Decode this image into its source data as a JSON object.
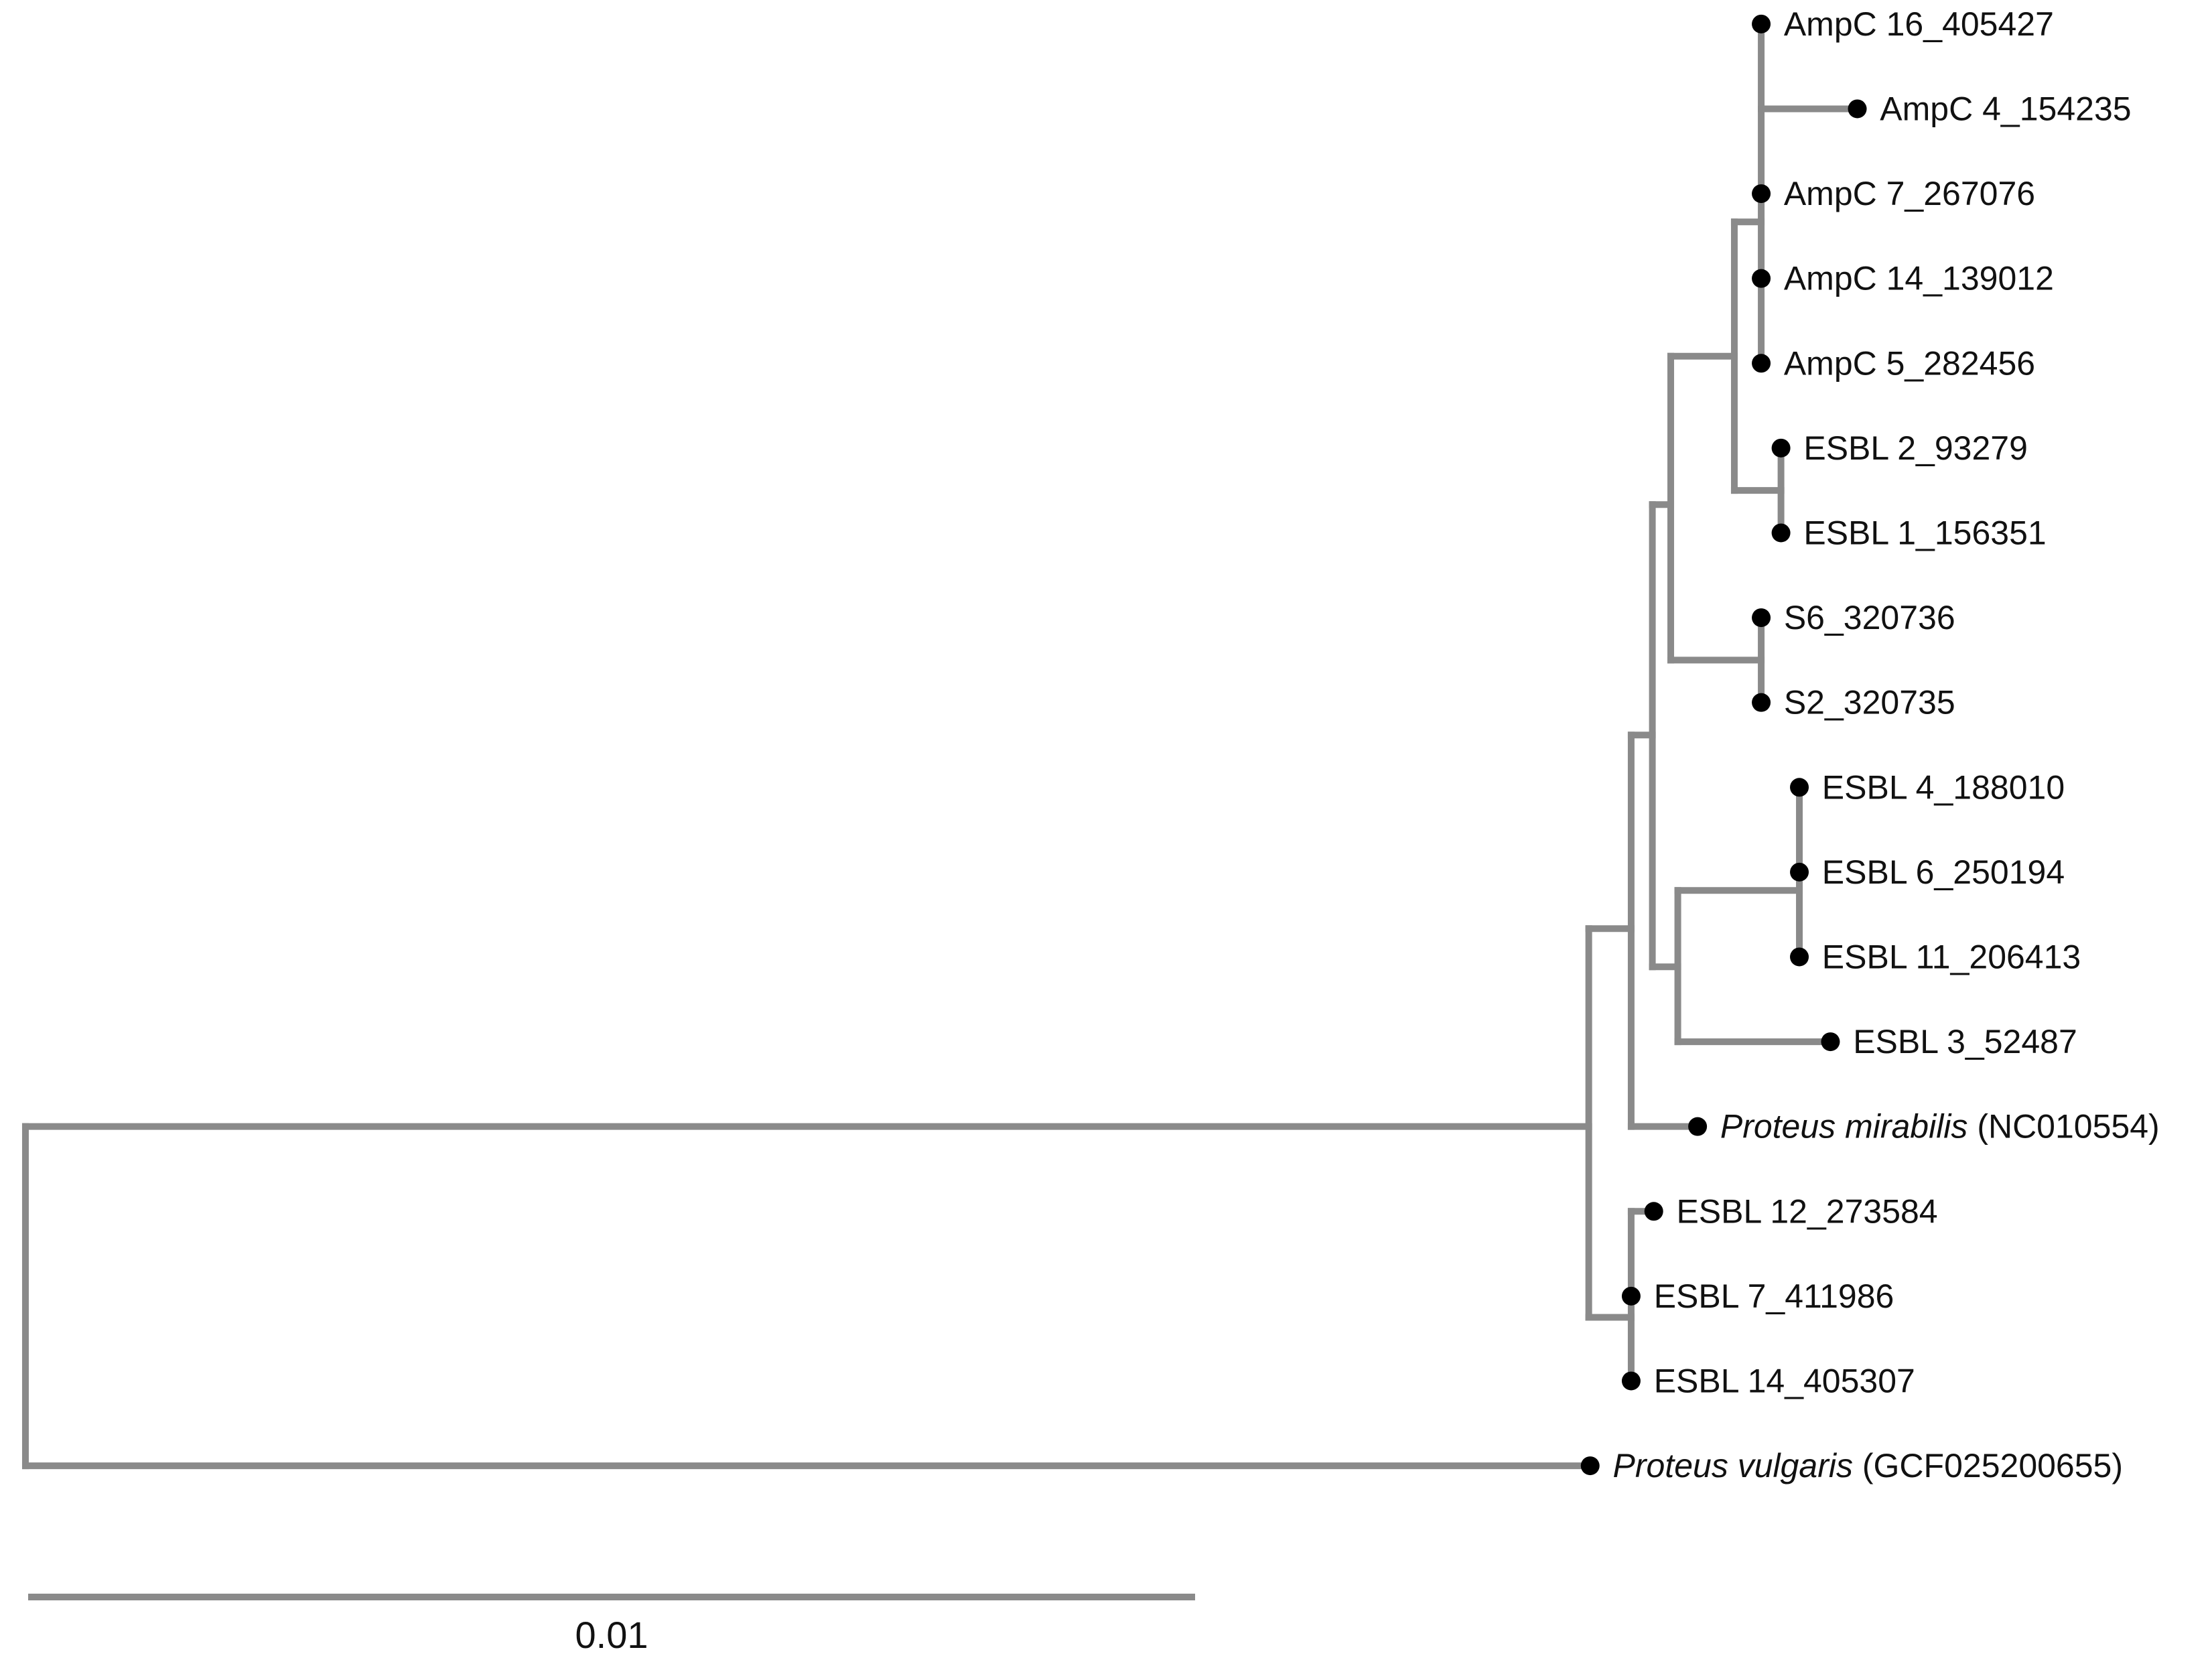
{
  "colors": {
    "branch": "#8a8a8a",
    "tip": "#000000",
    "text": "#111111"
  },
  "scale_bar": {
    "label": "0.01"
  },
  "taxa": [
    {
      "id": "ampc16",
      "name": "AmpC 16_405427"
    },
    {
      "id": "ampc4",
      "name": "AmpC 4_154235"
    },
    {
      "id": "ampc7",
      "name": "AmpC 7_267076"
    },
    {
      "id": "ampc14",
      "name": "AmpC 14_139012"
    },
    {
      "id": "ampc5",
      "name": "AmpC 5_282456"
    },
    {
      "id": "esbl2",
      "name": "ESBL 2_93279"
    },
    {
      "id": "esbl1",
      "name": "ESBL 1_156351"
    },
    {
      "id": "s6",
      "name": "S6_320736"
    },
    {
      "id": "s2",
      "name": "S2_320735"
    },
    {
      "id": "esbl4",
      "name": "ESBL 4_188010"
    },
    {
      "id": "esbl6",
      "name": "ESBL 6_250194"
    },
    {
      "id": "esbl11",
      "name": "ESBL 11_206413"
    },
    {
      "id": "esbl3",
      "name": "ESBL 3_52487"
    },
    {
      "id": "pmirabilis",
      "name_italic": "Proteus mirabilis",
      "name_suffix": " (NC010554)"
    },
    {
      "id": "esbl12",
      "name": "ESBL 12_273584"
    },
    {
      "id": "esbl7",
      "name": "ESBL 7_411986"
    },
    {
      "id": "esbl14",
      "name": "ESBL 14_405307"
    },
    {
      "id": "pvulgaris",
      "name_italic": "Proteus vulgaris",
      "name_suffix": " (GCF025200655)"
    }
  ]
}
